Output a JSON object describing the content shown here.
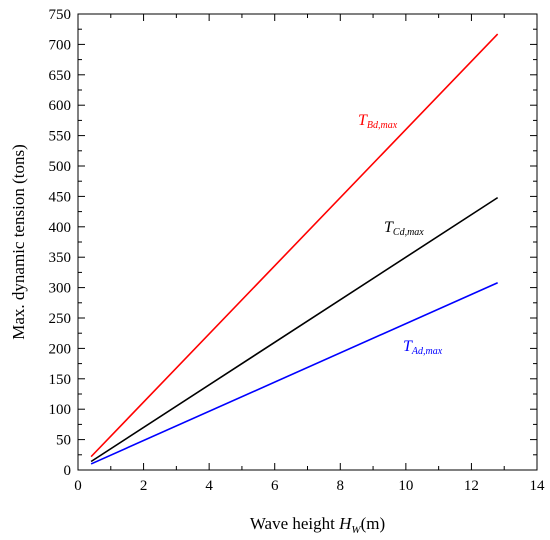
{
  "chart_data": {
    "type": "line",
    "xlabel": "Wave height ",
    "xlabel_var": "H",
    "xlabel_sub": "W",
    "xlabel_unit": "(m)",
    "ylabel": "Max. dynamic tension (tons)",
    "xlim": [
      0,
      14
    ],
    "ylim": [
      0,
      750
    ],
    "xticks": [
      0,
      2,
      4,
      6,
      8,
      10,
      12,
      14
    ],
    "yticks": [
      0,
      50,
      100,
      150,
      200,
      250,
      300,
      350,
      400,
      450,
      500,
      550,
      600,
      650,
      700,
      750
    ],
    "grid": false,
    "series": [
      {
        "name": "T",
        "name_sub": "Bd,max",
        "color": "#ff0000",
        "x": [
          0.4,
          12.8
        ],
        "y": [
          22,
          717
        ]
      },
      {
        "name": "T",
        "name_sub": "Cd,max",
        "color": "#000000",
        "x": [
          0.4,
          12.8
        ],
        "y": [
          14,
          448
        ]
      },
      {
        "name": "T",
        "name_sub": "Ad,max",
        "color": "#0000ff",
        "x": [
          0.4,
          12.8
        ],
        "y": [
          10,
          308
        ]
      }
    ]
  }
}
